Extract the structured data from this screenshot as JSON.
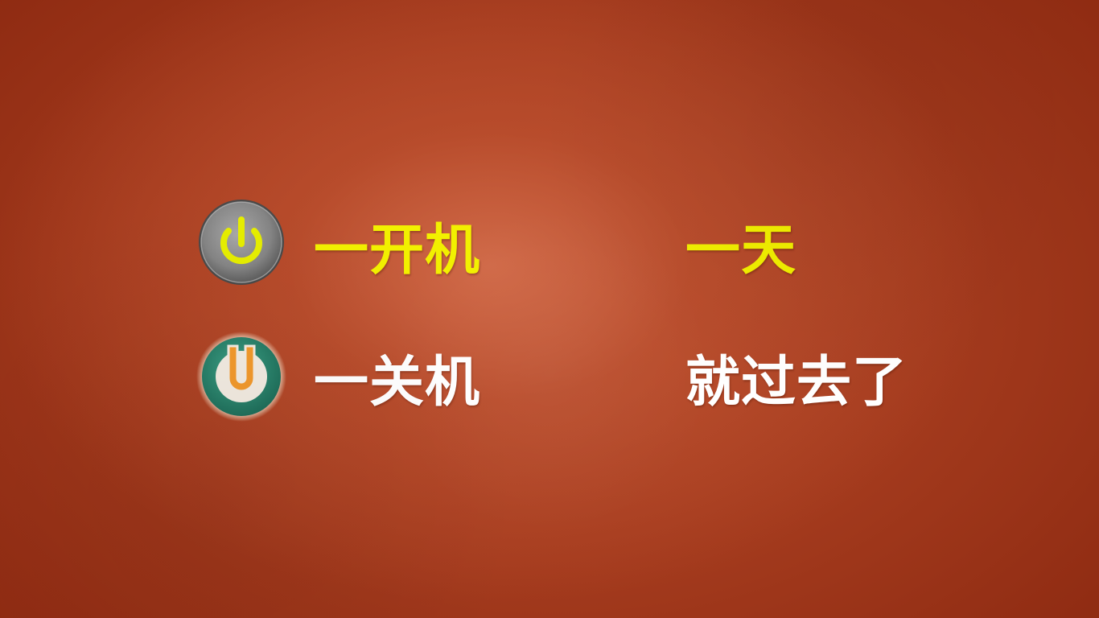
{
  "line1": {
    "left": "一开机",
    "right": "一天"
  },
  "line2": {
    "left": "一关机",
    "right": "就过去了"
  },
  "icons": {
    "top": "power-icon",
    "bottom": "u-icon"
  },
  "colors": {
    "background": "#a73d1f",
    "yellow_text": "#f2f000",
    "white_text": "#ffffff",
    "power_button": "#8a8a8a",
    "power_symbol": "#e6ee00",
    "u_ring": "#2e8c74",
    "u_letter": "#f39a2c"
  }
}
